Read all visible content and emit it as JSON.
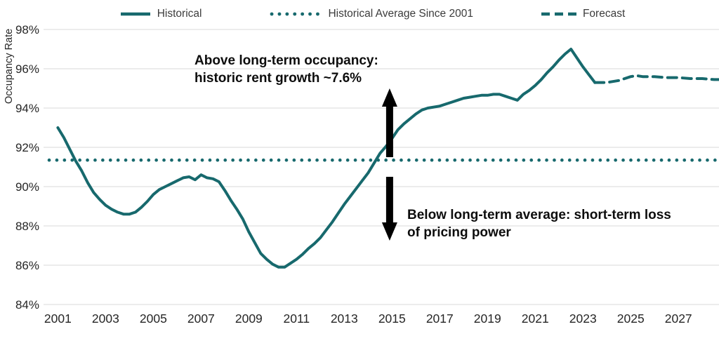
{
  "colors": {
    "teal": "#17696D",
    "grid": "#D8D8D8",
    "tick_text": "#262626",
    "legend_text": "#3C3C3C",
    "annotation_text": "#0D0D0D",
    "arrow": "#000000",
    "background": "#FFFFFF"
  },
  "legend": [
    {
      "label": "Historical",
      "style": "solid"
    },
    {
      "label": "Historical Average Since 2001",
      "style": "dotted"
    },
    {
      "label": "Forecast",
      "style": "dashed"
    }
  ],
  "annotations": {
    "above": {
      "text": "Above long-term occupancy:\nhistoric rent growth ~7.6%"
    },
    "below": {
      "text": "Below long-term average: short-term loss\nof pricing power"
    },
    "arrows": [
      {
        "name": "up-arrow",
        "year": 2014.9,
        "from_value": 91.5,
        "to_value": 95.0
      },
      {
        "name": "down-arrow",
        "year": 2014.9,
        "from_value": 90.5,
        "to_value": 87.25
      }
    ]
  },
  "chart_data": {
    "type": "line",
    "title": "",
    "xlabel": "",
    "ylabel": "Occupancy Rate",
    "ylim": [
      84,
      98
    ],
    "xlim": [
      2000.4,
      2028.7
    ],
    "grid": "horizontal",
    "legend_position": "top",
    "y_ticks": [
      98,
      96,
      94,
      92,
      90,
      88,
      86,
      84
    ],
    "y_tick_suffix": "%",
    "x_ticks": [
      2001,
      2003,
      2005,
      2007,
      2009,
      2011,
      2013,
      2015,
      2017,
      2019,
      2021,
      2023,
      2025,
      2027
    ],
    "average_since_2001": 91.35,
    "series": [
      {
        "name": "Historical",
        "style": "solid",
        "points": [
          [
            2001.0,
            93.0
          ],
          [
            2001.25,
            92.5
          ],
          [
            2001.5,
            91.9
          ],
          [
            2001.75,
            91.3
          ],
          [
            2002.0,
            90.8
          ],
          [
            2002.25,
            90.2
          ],
          [
            2002.5,
            89.7
          ],
          [
            2002.75,
            89.35
          ],
          [
            2003.0,
            89.05
          ],
          [
            2003.25,
            88.85
          ],
          [
            2003.5,
            88.7
          ],
          [
            2003.75,
            88.6
          ],
          [
            2004.0,
            88.6
          ],
          [
            2004.25,
            88.7
          ],
          [
            2004.5,
            88.95
          ],
          [
            2004.75,
            89.25
          ],
          [
            2005.0,
            89.6
          ],
          [
            2005.25,
            89.85
          ],
          [
            2005.5,
            90.0
          ],
          [
            2005.75,
            90.15
          ],
          [
            2006.0,
            90.3
          ],
          [
            2006.25,
            90.45
          ],
          [
            2006.5,
            90.5
          ],
          [
            2006.75,
            90.35
          ],
          [
            2007.0,
            90.6
          ],
          [
            2007.25,
            90.45
          ],
          [
            2007.5,
            90.4
          ],
          [
            2007.75,
            90.25
          ],
          [
            2008.0,
            89.8
          ],
          [
            2008.25,
            89.3
          ],
          [
            2008.5,
            88.85
          ],
          [
            2008.75,
            88.35
          ],
          [
            2009.0,
            87.7
          ],
          [
            2009.25,
            87.15
          ],
          [
            2009.5,
            86.6
          ],
          [
            2009.75,
            86.3
          ],
          [
            2010.0,
            86.05
          ],
          [
            2010.25,
            85.9
          ],
          [
            2010.5,
            85.9
          ],
          [
            2010.75,
            86.1
          ],
          [
            2011.0,
            86.3
          ],
          [
            2011.25,
            86.55
          ],
          [
            2011.5,
            86.85
          ],
          [
            2011.75,
            87.1
          ],
          [
            2012.0,
            87.4
          ],
          [
            2012.25,
            87.8
          ],
          [
            2012.5,
            88.2
          ],
          [
            2012.75,
            88.65
          ],
          [
            2013.0,
            89.1
          ],
          [
            2013.25,
            89.5
          ],
          [
            2013.5,
            89.9
          ],
          [
            2013.75,
            90.3
          ],
          [
            2014.0,
            90.7
          ],
          [
            2014.25,
            91.2
          ],
          [
            2014.5,
            91.7
          ],
          [
            2014.75,
            92.05
          ],
          [
            2015.0,
            92.45
          ],
          [
            2015.25,
            92.9
          ],
          [
            2015.5,
            93.2
          ],
          [
            2015.75,
            93.45
          ],
          [
            2016.0,
            93.7
          ],
          [
            2016.25,
            93.9
          ],
          [
            2016.5,
            94.0
          ],
          [
            2016.75,
            94.05
          ],
          [
            2017.0,
            94.1
          ],
          [
            2017.25,
            94.2
          ],
          [
            2017.5,
            94.3
          ],
          [
            2017.75,
            94.4
          ],
          [
            2018.0,
            94.5
          ],
          [
            2018.25,
            94.55
          ],
          [
            2018.5,
            94.6
          ],
          [
            2018.75,
            94.65
          ],
          [
            2019.0,
            94.65
          ],
          [
            2019.25,
            94.7
          ],
          [
            2019.5,
            94.7
          ],
          [
            2019.75,
            94.6
          ],
          [
            2020.0,
            94.5
          ],
          [
            2020.25,
            94.4
          ],
          [
            2020.5,
            94.7
          ],
          [
            2020.75,
            94.9
          ],
          [
            2021.0,
            95.15
          ],
          [
            2021.25,
            95.45
          ],
          [
            2021.5,
            95.8
          ],
          [
            2021.75,
            96.1
          ],
          [
            2022.0,
            96.45
          ],
          [
            2022.25,
            96.75
          ],
          [
            2022.5,
            97.0
          ],
          [
            2022.75,
            96.55
          ],
          [
            2023.0,
            96.1
          ],
          [
            2023.25,
            95.7
          ],
          [
            2023.5,
            95.3
          ]
        ]
      },
      {
        "name": "Historical Average Since 2001",
        "style": "dotted",
        "value": 91.35
      },
      {
        "name": "Forecast",
        "style": "dashed",
        "points": [
          [
            2023.5,
            95.3
          ],
          [
            2023.75,
            95.3
          ],
          [
            2024.0,
            95.3
          ],
          [
            2024.25,
            95.35
          ],
          [
            2024.5,
            95.4
          ],
          [
            2024.75,
            95.5
          ],
          [
            2025.0,
            95.6
          ],
          [
            2025.25,
            95.65
          ],
          [
            2025.5,
            95.6
          ],
          [
            2026.0,
            95.6
          ],
          [
            2026.5,
            95.55
          ],
          [
            2027.0,
            95.55
          ],
          [
            2027.5,
            95.5
          ],
          [
            2028.0,
            95.5
          ],
          [
            2028.5,
            95.45
          ],
          [
            2028.7,
            95.45
          ]
        ]
      }
    ]
  }
}
